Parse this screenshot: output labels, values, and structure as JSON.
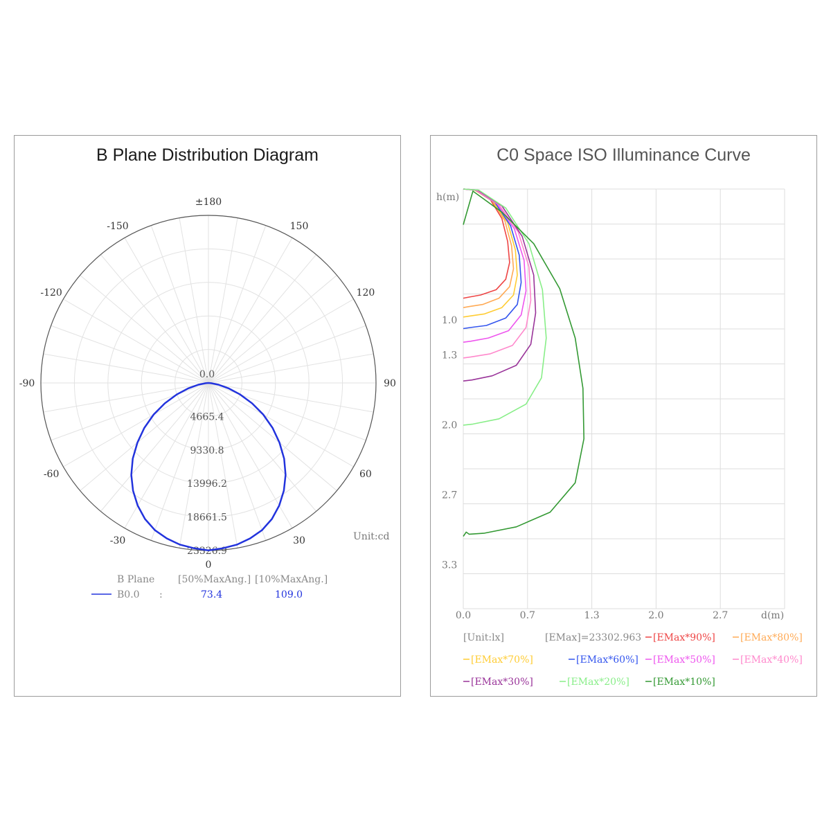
{
  "left_panel": {
    "title": "B Plane Distribution Diagram",
    "unit": "Unit:cd",
    "legend": {
      "header_plane": "B Plane",
      "header_50": "[50%MaxAng.]",
      "header_10": "[10%MaxAng.]",
      "row_label": "B0.0",
      "row_sep": ":",
      "val_50": "73.4",
      "val_10": "109.0"
    }
  },
  "right_panel": {
    "title": "C0 Space ISO Illuminance Curve",
    "y_axis_label": "h(m)",
    "x_axis_label": "d(m)",
    "unit_label": "[Unit:lx]",
    "emax_label": "[EMax]=23302.963"
  },
  "chart_data": [
    {
      "type": "polar",
      "title": "B Plane Distribution Diagram",
      "unit": "Unit:cd",
      "angle_labels": [
        {
          "angle": 180,
          "text": "±180"
        },
        {
          "angle": 150,
          "text": "150"
        },
        {
          "angle": -150,
          "text": "-150"
        },
        {
          "angle": 120,
          "text": "120"
        },
        {
          "angle": -120,
          "text": "-120"
        },
        {
          "angle": 90,
          "text": "90"
        },
        {
          "angle": -90,
          "text": "-90"
        },
        {
          "angle": 60,
          "text": "60"
        },
        {
          "angle": -60,
          "text": "-60"
        },
        {
          "angle": 30,
          "text": "30"
        },
        {
          "angle": -30,
          "text": "-30"
        },
        {
          "angle": 0,
          "text": "0"
        }
      ],
      "radial_labels": [
        "0.0",
        "4665.4",
        "9330.8",
        "13996.2",
        "18661.5",
        "23326.9"
      ],
      "radial_values": [
        0,
        4665.4,
        9330.8,
        13996.2,
        18661.5,
        23326.9
      ],
      "rmax": 23326.9,
      "series": [
        {
          "name": "B0.0",
          "color": "#2233dd",
          "angles": [
            0,
            5,
            10,
            15,
            20,
            25,
            30,
            35,
            40,
            45,
            50,
            55,
            60,
            65,
            70,
            75,
            80,
            85,
            90
          ],
          "values": [
            23302,
            23100,
            22850,
            22400,
            21800,
            20900,
            19700,
            18300,
            16700,
            14900,
            12900,
            10900,
            8800,
            6700,
            4700,
            2900,
            1400,
            400,
            0
          ]
        }
      ],
      "legend": {
        "b_plane": "B0.0",
        "max50_angle": 73.4,
        "max10_angle": 109.0
      }
    },
    {
      "type": "line",
      "title": "C0 Space ISO Illuminance Curve",
      "xlabel": "d(m)",
      "ylabel": "h(m)",
      "x_ticks": [
        "0.0",
        "0.7",
        "1.3",
        "2.0",
        "2.7"
      ],
      "y_ticks": [
        "1.0",
        "1.3",
        "2.0",
        "2.7",
        "3.3"
      ],
      "xlim": [
        0,
        3.33
      ],
      "ylim": [
        0,
        4.0
      ],
      "emax": 23302.963,
      "unit": "lx",
      "series": [
        {
          "name": "[EMax*90%]",
          "color": "#ee4444",
          "x": [
            0,
            0.12,
            0.28,
            0.4,
            0.46,
            0.48,
            0.44,
            0.34,
            0.18,
            0.06,
            0
          ],
          "y": [
            0,
            0.01,
            0.1,
            0.28,
            0.5,
            0.7,
            0.86,
            0.96,
            1.01,
            1.03,
            1.04
          ]
        },
        {
          "name": "[EMax*80%]",
          "color": "#ffaa55",
          "x": [
            0,
            0.12,
            0.3,
            0.43,
            0.5,
            0.52,
            0.48,
            0.37,
            0.2,
            0.06,
            0
          ],
          "y": [
            0,
            0.01,
            0.11,
            0.3,
            0.54,
            0.76,
            0.93,
            1.04,
            1.1,
            1.12,
            1.13
          ]
        },
        {
          "name": "[EMax*70%]",
          "color": "#ffcc33",
          "x": [
            0,
            0.12,
            0.31,
            0.46,
            0.54,
            0.56,
            0.52,
            0.4,
            0.22,
            0.07,
            0
          ],
          "y": [
            0,
            0.01,
            0.12,
            0.32,
            0.58,
            0.82,
            1.01,
            1.13,
            1.19,
            1.21,
            1.22
          ]
        },
        {
          "name": "[EMax*60%]",
          "color": "#3355ee",
          "x": [
            0,
            0.13,
            0.33,
            0.49,
            0.58,
            0.6,
            0.56,
            0.44,
            0.24,
            0.07,
            0
          ],
          "y": [
            0,
            0.01,
            0.13,
            0.35,
            0.63,
            0.89,
            1.1,
            1.23,
            1.3,
            1.32,
            1.33
          ]
        },
        {
          "name": "[EMax*50%]",
          "color": "#ee55ee",
          "x": [
            0,
            0.13,
            0.35,
            0.53,
            0.63,
            0.65,
            0.6,
            0.47,
            0.26,
            0.08,
            0
          ],
          "y": [
            0,
            0.01,
            0.14,
            0.38,
            0.68,
            0.97,
            1.2,
            1.35,
            1.42,
            1.45,
            1.46
          ]
        },
        {
          "name": "[EMax*40%]",
          "color": "#ff88cc",
          "x": [
            0,
            0.14,
            0.37,
            0.57,
            0.68,
            0.7,
            0.65,
            0.51,
            0.28,
            0.08,
            0
          ],
          "y": [
            0,
            0.01,
            0.15,
            0.41,
            0.74,
            1.06,
            1.32,
            1.49,
            1.57,
            1.6,
            1.61
          ]
        },
        {
          "name": "[EMax*30%]",
          "color": "#993399",
          "x": [
            0,
            0.15,
            0.4,
            0.61,
            0.73,
            0.75,
            0.7,
            0.55,
            0.3,
            0.09,
            0
          ],
          "y": [
            0,
            0.01,
            0.16,
            0.45,
            0.82,
            1.18,
            1.48,
            1.68,
            1.78,
            1.82,
            1.83
          ]
        },
        {
          "name": "[EMax*20%]",
          "color": "#88ee88",
          "x": [
            0,
            0.16,
            0.44,
            0.68,
            0.82,
            0.86,
            0.81,
            0.65,
            0.37,
            0.1,
            0
          ],
          "y": [
            0,
            0.01,
            0.18,
            0.52,
            0.96,
            1.42,
            1.8,
            2.05,
            2.19,
            2.24,
            2.25
          ]
        },
        {
          "name": "[EMax*10%]",
          "color": "#339933",
          "x": [
            0,
            0.1,
            0.4,
            0.73,
            1.0,
            1.16,
            1.24,
            1.25,
            1.16,
            0.9,
            0.55,
            0.22,
            0.06,
            0.03,
            0
          ],
          "y": [
            0.34,
            0.02,
            0.22,
            0.52,
            0.95,
            1.42,
            1.9,
            2.38,
            2.8,
            3.08,
            3.22,
            3.28,
            3.29,
            3.27,
            3.31
          ]
        }
      ],
      "legend": [
        "[EMax*90%]",
        "[EMax*80%]",
        "[EMax*70%]",
        "[EMax*60%]",
        "[EMax*50%]",
        "[EMax*40%]",
        "[EMax*30%]",
        "[EMax*20%]",
        "[EMax*10%]"
      ]
    }
  ]
}
